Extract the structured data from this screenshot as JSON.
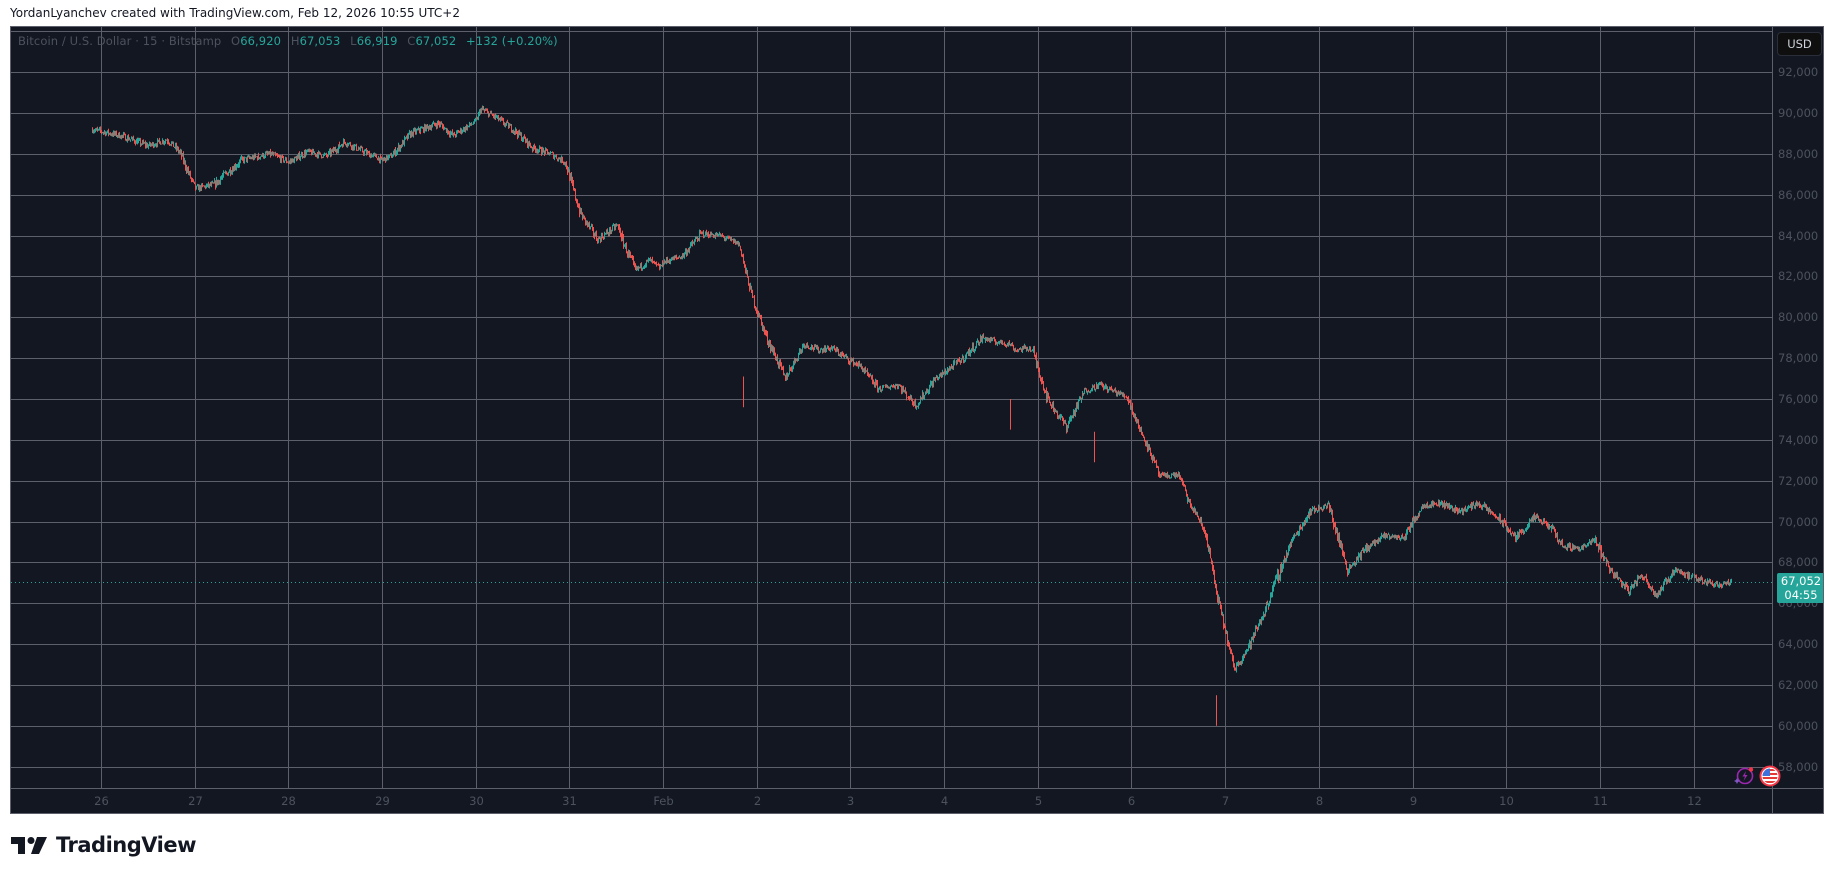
{
  "header": {
    "credit": "YordanLyanchev created with TradingView.com, Feb 12, 2026 10:55 UTC+2"
  },
  "legend": {
    "symbol": "Bitcoin / U.S. Dollar · 15 · Bitstamp",
    "open_label": "O",
    "open": "66,920",
    "high_label": "H",
    "high": "67,053",
    "low_label": "L",
    "low": "66,919",
    "close_label": "C",
    "close": "67,052",
    "change": "+132 (+0.20%)"
  },
  "currency_button": "USD",
  "last_price": {
    "price": "67,052",
    "countdown": "04:55"
  },
  "brand": {
    "name": "TradingView"
  },
  "colors": {
    "background": "#131722",
    "grid": "#5d606b",
    "up": "#26a69a",
    "down": "#ef5350",
    "axis_text": "#4c525e",
    "price_tag": "#26a69a"
  },
  "chart_data": {
    "type": "candlestick",
    "title": "Bitcoin / U.S. Dollar · 15 · Bitstamp",
    "interval": "15",
    "exchange": "Bitstamp",
    "currency": "USD",
    "xlabel": "",
    "ylabel": "",
    "ylim": [
      57000,
      93500
    ],
    "y_ticks": [
      58000,
      60000,
      62000,
      64000,
      66000,
      68000,
      70000,
      72000,
      74000,
      76000,
      78000,
      80000,
      82000,
      84000,
      86000,
      88000,
      90000,
      92000
    ],
    "y_tick_labels": [
      "58,000",
      "60,000",
      "62,000",
      "64,000",
      "66,000",
      "68,000",
      "70,000",
      "72,000",
      "74,000",
      "76,000",
      "78,000",
      "80,000",
      "82,000",
      "84,000",
      "86,000",
      "88,000",
      "90,000",
      "92,000"
    ],
    "x_tick_labels": [
      "26",
      "27",
      "28",
      "29",
      "30",
      "31",
      "Feb",
      "2",
      "3",
      "4",
      "5",
      "6",
      "7",
      "8",
      "9",
      "10",
      "11",
      "12"
    ],
    "grid": true,
    "last": {
      "open": 66920,
      "high": 67053,
      "low": 66919,
      "close": 67052,
      "change": 132,
      "change_pct": 0.2
    },
    "x_unit": "days since Jan 25 00:00",
    "x": [
      0.9,
      1.2,
      1.5,
      1.7,
      1.85,
      2.0,
      2.2,
      2.5,
      2.8,
      3.0,
      3.2,
      3.4,
      3.6,
      3.8,
      4.0,
      4.1,
      4.3,
      4.6,
      4.75,
      4.9,
      5.0,
      5.05,
      5.2,
      5.4,
      5.6,
      5.8,
      5.95,
      6.1,
      6.3,
      6.5,
      6.7,
      6.85,
      6.95,
      7.0,
      7.2,
      7.4,
      7.6,
      7.8,
      7.85,
      7.95,
      8.1,
      8.3,
      8.5,
      8.65,
      8.8,
      8.95,
      9.1,
      9.3,
      9.5,
      9.7,
      9.9,
      10.0,
      10.2,
      10.4,
      10.55,
      10.7,
      10.75,
      10.9,
      10.95,
      11.1,
      11.3,
      11.5,
      11.65,
      11.85,
      11.95,
      12.1,
      12.2,
      12.3,
      12.5,
      12.6,
      12.7,
      12.8,
      12.9,
      13.0,
      13.1,
      13.25,
      13.45,
      13.7,
      13.9,
      14.1,
      14.3,
      14.5,
      14.7,
      14.9,
      15.1,
      15.3,
      15.5,
      15.7,
      15.9,
      16.1,
      16.3,
      16.5,
      16.6,
      16.8,
      16.95,
      17.1,
      17.3,
      17.45,
      17.6,
      17.8,
      17.95,
      18.1,
      18.3,
      18.4
    ],
    "close": [
      89200,
      88900,
      88400,
      88700,
      88000,
      86300,
      86500,
      87700,
      88000,
      87600,
      88100,
      87900,
      88600,
      88100,
      87700,
      87900,
      89000,
      89500,
      88900,
      89300,
      89600,
      90200,
      89800,
      89200,
      88300,
      88000,
      87600,
      85200,
      83800,
      84500,
      82300,
      82800,
      82400,
      82700,
      83000,
      84100,
      84000,
      83600,
      82800,
      81000,
      79000,
      77000,
      78700,
      78400,
      78500,
      78000,
      77600,
      76500,
      76700,
      75700,
      77000,
      77300,
      78000,
      79000,
      78800,
      78700,
      78400,
      78500,
      78300,
      76000,
      74600,
      76400,
      76700,
      76300,
      76100,
      74300,
      73400,
      72200,
      72300,
      71000,
      70300,
      69200,
      66500,
      64500,
      62800,
      63900,
      66000,
      69000,
      70500,
      70800,
      67600,
      68700,
      69300,
      69200,
      70800,
      70900,
      70500,
      70900,
      70200,
      69200,
      70200,
      69600,
      68800,
      68700,
      69100,
      67700,
      66600,
      67400,
      66400,
      67700,
      67300,
      67100,
      66900,
      67052
    ]
  }
}
